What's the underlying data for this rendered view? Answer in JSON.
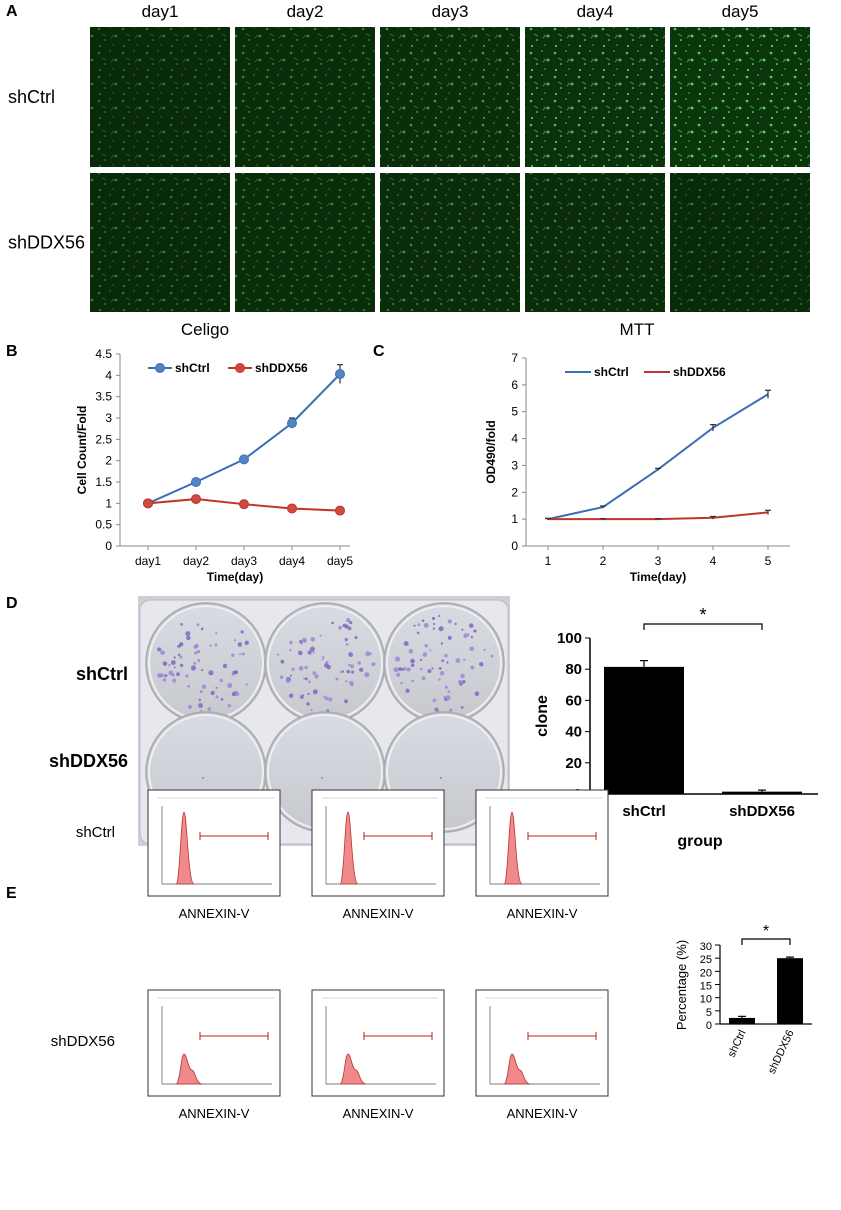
{
  "panel_labels": {
    "a": "A",
    "b": "B",
    "c": "C",
    "d": "D",
    "e": "E"
  },
  "panel_a": {
    "columns": [
      "day1",
      "day2",
      "day3",
      "day4",
      "day5"
    ],
    "rows": [
      "shCtrl",
      "shDDX56"
    ],
    "brightness": [
      [
        0.35,
        0.45,
        0.55,
        0.8,
        0.9
      ],
      [
        0.4,
        0.45,
        0.5,
        0.5,
        0.4
      ]
    ],
    "method_labels": [
      "Celigo",
      "MTT"
    ]
  },
  "panel_d": {
    "rows": [
      "shCtrl",
      "shDDX56"
    ],
    "colony_density": [
      1,
      0
    ]
  },
  "panel_e": {
    "rows": [
      "shCtrl",
      "shDDX56"
    ],
    "xlabel": "ANNEXIN-V",
    "histogram_shape": [
      "single-peak",
      "double-peak"
    ]
  },
  "colors": {
    "shCtrl": "#3a6eb5",
    "shDDX56": "#c0352b",
    "fluorescence": "#35c435",
    "histogram_fill": "#f08a8a",
    "bar": "#000000"
  },
  "chart_data": [
    {
      "id": "B",
      "type": "line",
      "categories": [
        "day1",
        "day2",
        "day3",
        "day4",
        "day5"
      ],
      "series": [
        {
          "name": "shCtrl",
          "values": [
            1.0,
            1.5,
            2.03,
            2.88,
            4.03
          ],
          "errors": [
            0.03,
            0.04,
            0.07,
            0.12,
            0.22
          ]
        },
        {
          "name": "shDDX56",
          "values": [
            1.0,
            1.1,
            0.98,
            0.88,
            0.83
          ],
          "errors": [
            0.02,
            0.03,
            0.03,
            0.03,
            0.03
          ]
        }
      ],
      "xlabel": "Time(day)",
      "ylabel": "Cell Count/Fold",
      "ylim": [
        0,
        4.5
      ],
      "yticks": [
        "0",
        "0.5",
        "1",
        "1.5",
        "2",
        "2.5",
        "3",
        "3.5",
        "4",
        "4.5"
      ],
      "legend_placement": "top-left",
      "grid": false
    },
    {
      "id": "C",
      "type": "line",
      "categories": [
        "1",
        "2",
        "3",
        "4",
        "5"
      ],
      "series": [
        {
          "name": "shCtrl",
          "values": [
            1.0,
            1.45,
            2.85,
            4.4,
            5.65
          ],
          "errors": [
            0.03,
            0.04,
            0.04,
            0.12,
            0.15
          ]
        },
        {
          "name": "shDDX56",
          "values": [
            1.0,
            1.0,
            1.0,
            1.05,
            1.25
          ],
          "errors": [
            0.02,
            0.02,
            0.02,
            0.05,
            0.08
          ]
        }
      ],
      "xlabel": "Time(day)",
      "ylabel": "OD490/fold",
      "ylim": [
        0,
        7
      ],
      "yticks": [
        "0",
        "1",
        "2",
        "3",
        "4",
        "5",
        "6",
        "7"
      ],
      "legend_placement": "top-left",
      "grid": false
    },
    {
      "id": "D",
      "type": "bar",
      "categories": [
        "shCtrl",
        "shDDX56"
      ],
      "values": [
        81.5,
        1.5
      ],
      "errors": [
        4,
        1
      ],
      "xlabel": "group",
      "ylabel": "clone",
      "ylim": [
        0,
        100
      ],
      "yticks": [
        "0",
        "20",
        "40",
        "60",
        "80",
        "100"
      ],
      "significance": "*"
    },
    {
      "id": "E",
      "type": "bar",
      "categories": [
        "shCtrl",
        "shDDX56"
      ],
      "values": [
        2.3,
        25
      ],
      "errors": [
        0.6,
        0.4
      ],
      "ylabel": "Percentage (%)",
      "ylim": [
        0,
        30
      ],
      "yticks": [
        "0",
        "5",
        "10",
        "15",
        "20",
        "25",
        "30"
      ],
      "significance": "*"
    }
  ]
}
